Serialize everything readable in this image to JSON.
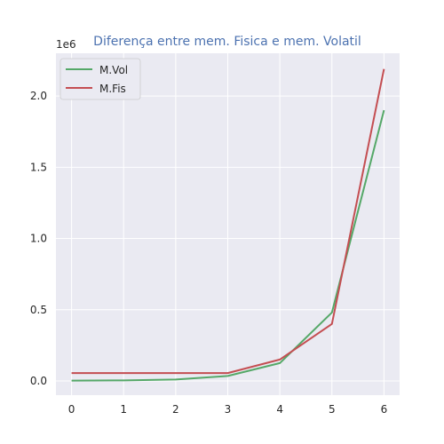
{
  "chart_data": {
    "type": "line",
    "title": "Diferença entre mem. Fisica e mem. Volatil",
    "xlabel": "",
    "ylabel": "",
    "y_offset_label": "1e6",
    "y_scale": 1000000,
    "x": [
      0,
      1,
      2,
      3,
      4,
      5,
      6
    ],
    "xlim": [
      -0.3,
      6.3
    ],
    "ylim": [
      -100000,
      2300000
    ],
    "x_ticks": [
      0,
      1,
      2,
      3,
      4,
      5,
      6
    ],
    "x_tick_labels": [
      "0",
      "1",
      "2",
      "3",
      "4",
      "5",
      "6"
    ],
    "y_ticks": [
      0,
      500000,
      1000000,
      1500000,
      2000000
    ],
    "y_tick_labels": [
      "0.0",
      "0.5",
      "1.0",
      "1.5",
      "2.0"
    ],
    "grid": true,
    "legend_position": "top-left",
    "series": [
      {
        "name": "M.Vol",
        "color": "#55a868",
        "values": [
          2000,
          4000,
          10000,
          35000,
          125000,
          480000,
          1900000
        ]
      },
      {
        "name": "M.Fis",
        "color": "#c44e52",
        "values": [
          55000,
          55000,
          55000,
          55000,
          150000,
          400000,
          2190000
        ]
      }
    ],
    "colors": {
      "plot_background": "#eaeaf2",
      "grid": "#ffffff",
      "title": "#4c72b0"
    }
  }
}
